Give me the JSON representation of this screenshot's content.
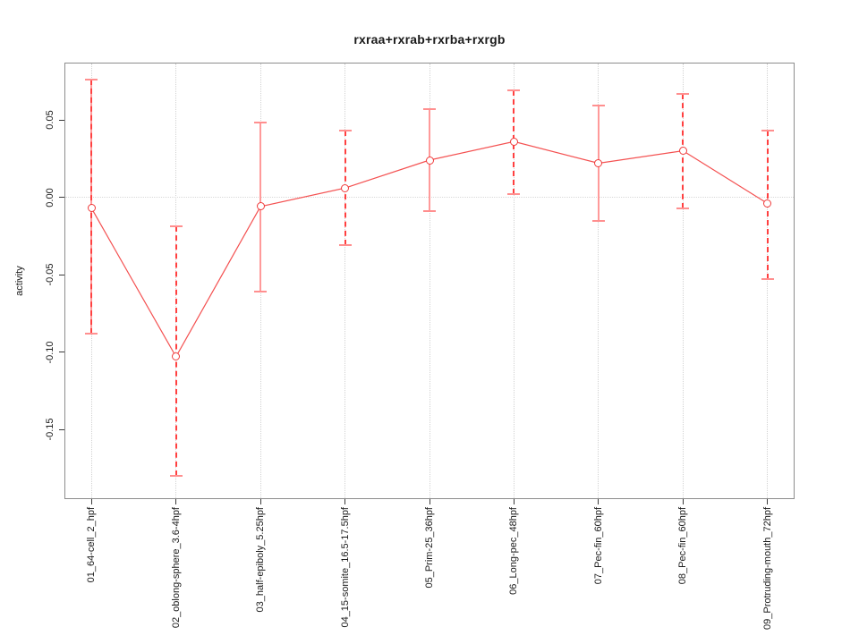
{
  "chart_data": {
    "type": "line",
    "title": "rxraa+rxrab+rxrba+rxrgb",
    "xlabel": "",
    "ylabel": "activity",
    "categories": [
      "01_64-cell_2_hpf",
      "02_oblong-sphere_3.6-4hpf",
      "03_half-epiboly_5.25hpf",
      "04_15-somite_16.5-17.5hpf",
      "05_Prim-25_36hpf",
      "06_Long-pec_48hpf",
      "07_Pec-fin_60hpf",
      "08_Pec-fin_60hpf",
      "09_Protruding-mouth_72hpf"
    ],
    "series": [
      {
        "name": "activity",
        "values": [
          -0.007,
          -0.103,
          -0.006,
          0.006,
          0.024,
          0.036,
          0.022,
          0.03,
          -0.004
        ],
        "error_high": [
          0.076,
          -0.019,
          0.048,
          0.043,
          0.057,
          0.069,
          0.059,
          0.067,
          0.043
        ],
        "error_low": [
          -0.088,
          -0.18,
          -0.061,
          -0.031,
          -0.009,
          0.002,
          -0.015,
          -0.007,
          -0.053
        ]
      }
    ],
    "error_bar_styles": [
      "solid+dashed",
      "dashed",
      "solid",
      "dashed",
      "solid",
      "dashed",
      "solid",
      "dashed",
      "dashed"
    ],
    "y_ticks": [
      0.05,
      0.0,
      -0.05,
      -0.1,
      -0.15
    ],
    "y_tick_labels": [
      "0.05",
      "0.00",
      "-0.05",
      "-0.10",
      "-0.15"
    ],
    "ylim": [
      -0.195,
      0.087
    ],
    "grid": {
      "vertical_dotted_at_each_category": true,
      "horizontal_dotted_at_zero": true
    },
    "legend": "none",
    "marker": "open-circle",
    "colors": {
      "line": "#f45151",
      "marker_stroke": "#ef3b3b",
      "error_bar_solid": "#ff9a9a",
      "error_bar_dashed": "#ff4040",
      "error_cap": "#ff8f8f",
      "gridline": "#d2d2d2",
      "zero_line": "#d8d8d8",
      "box_border": "#8c8c8c",
      "text": "#1a1a1a"
    }
  }
}
